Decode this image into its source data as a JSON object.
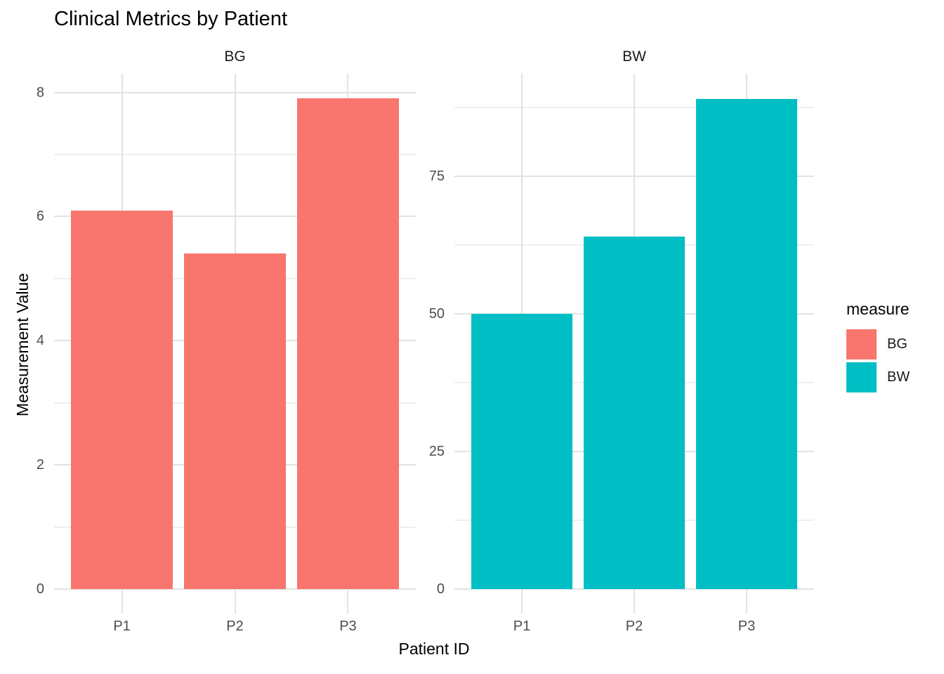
{
  "title": "Clinical Metrics by Patient",
  "chart_data": {
    "type": "bar",
    "title": "Clinical Metrics by Patient",
    "xlabel": "Patient ID",
    "ylabel": "Measurement Value",
    "grid": true,
    "categories": [
      "P1",
      "P2",
      "P3"
    ],
    "facets": [
      {
        "label": "BG",
        "color": "#F8766D",
        "categories": [
          "P1",
          "P2",
          "P3"
        ],
        "values": [
          6.1,
          5.4,
          7.9
        ],
        "y_ticks": [
          0,
          2,
          4,
          6,
          8
        ],
        "y_minor": [
          1,
          3,
          5,
          7
        ],
        "ylim": [
          0,
          8.3
        ]
      },
      {
        "label": "BW",
        "color": "#00BFC4",
        "categories": [
          "P1",
          "P2",
          "P3"
        ],
        "values": [
          50,
          64,
          89
        ],
        "y_ticks": [
          0,
          25,
          50,
          75
        ],
        "y_minor": [
          12.5,
          37.5,
          62.5,
          87.5
        ],
        "ylim": [
          0,
          93.6
        ]
      }
    ],
    "legend": {
      "title": "measure",
      "position": "right",
      "entries": [
        {
          "label": "BG",
          "color": "#F8766D"
        },
        {
          "label": "BW",
          "color": "#00BFC4"
        }
      ]
    }
  }
}
